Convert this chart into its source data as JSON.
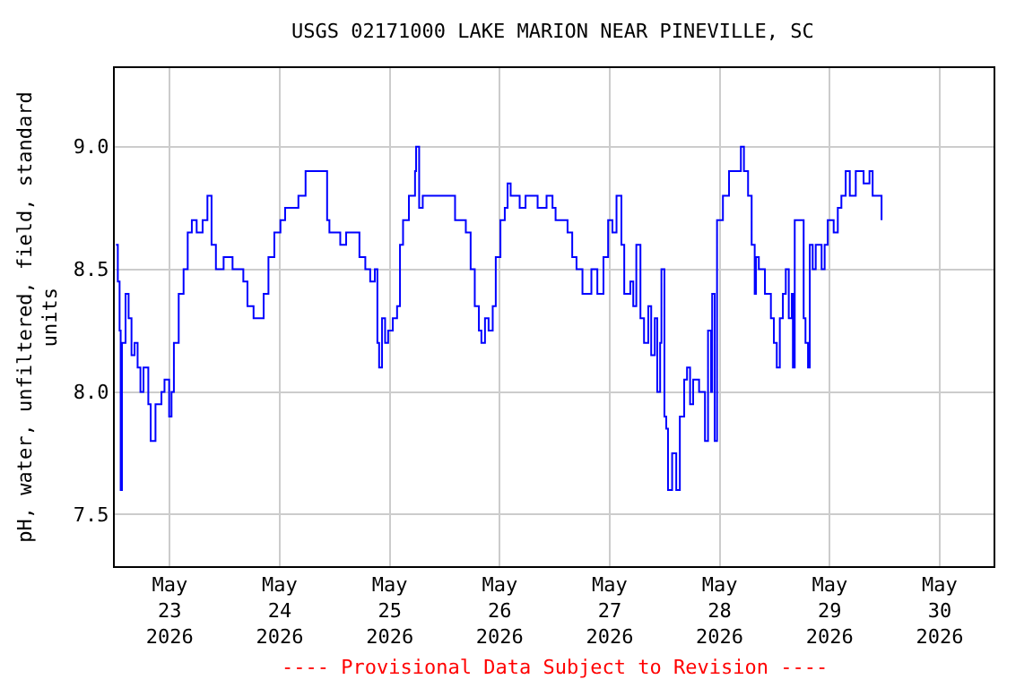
{
  "chart_data": {
    "type": "step",
    "title": "USGS 02171000 LAKE MARION NEAR PINEVILLE, SC",
    "ylabel": "pH, water, unfiltered, field, standard units",
    "annotations": [
      "---- Provisional Data Subject to Revision ----"
    ],
    "x": [
      "2026-05-22T12:16",
      "2026-05-22T12:40",
      "2026-05-22T13:03",
      "2026-05-22T13:17",
      "2026-05-22T13:34",
      "2026-05-22T14:21",
      "2026-05-22T15:01",
      "2026-05-22T15:39",
      "2026-05-22T16:19",
      "2026-05-22T16:59",
      "2026-05-22T17:36",
      "2026-05-22T18:16",
      "2026-05-22T19:19",
      "2026-05-22T19:50",
      "2026-05-22T20:53",
      "2026-05-22T22:11",
      "2026-05-22T22:51",
      "2026-05-22T23:52",
      "2026-05-23T00:23",
      "2026-05-23T00:54",
      "2026-05-23T01:57",
      "2026-05-23T03:01",
      "2026-05-23T03:55",
      "2026-05-23T04:49",
      "2026-05-23T05:52",
      "2026-05-23T07:10",
      "2026-05-23T08:13",
      "2026-05-23T09:07",
      "2026-05-23T10:04",
      "2026-05-23T11:45",
      "2026-05-23T13:42",
      "2026-05-23T16:03",
      "2026-05-23T16:57",
      "2026-05-23T18:17",
      "2026-05-23T19:58",
      "2026-05-23T20:29",
      "2026-05-23T21:32",
      "2026-05-23T22:49",
      "2026-05-24T00:09",
      "2026-05-24T01:10",
      "2026-05-24T02:44",
      "2026-05-24T04:04",
      "2026-05-24T05:38",
      "2026-05-24T09:17",
      "2026-05-24T10:20",
      "2026-05-24T10:50",
      "2026-05-24T11:54",
      "2026-05-24T12:32",
      "2026-05-24T13:12",
      "2026-05-24T14:29",
      "2026-05-24T16:27",
      "2026-05-24T17:23",
      "2026-05-24T18:40",
      "2026-05-24T19:44",
      "2026-05-24T20:45",
      "2026-05-24T21:18",
      "2026-05-24T21:41",
      "2026-05-24T22:19",
      "2026-05-24T22:59",
      "2026-05-24T23:39",
      "2026-05-25T00:40",
      "2026-05-25T01:36",
      "2026-05-25T02:14",
      "2026-05-25T02:54",
      "2026-05-25T04:11",
      "2026-05-25T05:31",
      "2026-05-25T05:45",
      "2026-05-25T06:25",
      "2026-05-25T07:12",
      "2026-05-25T13:21",
      "2026-05-25T14:15",
      "2026-05-25T16:36",
      "2026-05-25T17:39",
      "2026-05-25T18:33",
      "2026-05-25T19:27",
      "2026-05-25T20:00",
      "2026-05-25T20:47",
      "2026-05-25T21:34",
      "2026-05-25T22:28",
      "2026-05-25T23:08",
      "2026-05-26T00:09",
      "2026-05-26T01:06",
      "2026-05-26T01:43",
      "2026-05-26T02:23",
      "2026-05-26T04:21",
      "2026-05-26T05:38",
      "2026-05-26T08:16",
      "2026-05-26T10:13",
      "2026-05-26T11:31",
      "2026-05-26T12:11",
      "2026-05-26T14:48",
      "2026-05-26T15:49",
      "2026-05-26T16:45",
      "2026-05-26T18:03",
      "2026-05-26T20:00",
      "2026-05-26T21:18",
      "2026-05-26T22:38",
      "2026-05-26T23:39",
      "2026-05-27T00:35",
      "2026-05-27T01:29",
      "2026-05-27T02:33",
      "2026-05-27T03:10",
      "2026-05-27T04:30",
      "2026-05-27T05:08",
      "2026-05-27T05:48",
      "2026-05-27T06:42",
      "2026-05-27T07:29",
      "2026-05-27T08:25",
      "2026-05-27T09:03",
      "2026-05-27T09:50",
      "2026-05-27T10:22",
      "2026-05-27T11:00",
      "2026-05-27T11:17",
      "2026-05-27T11:56",
      "2026-05-27T12:20",
      "2026-05-27T12:43",
      "2026-05-27T13:37",
      "2026-05-27T14:31",
      "2026-05-27T15:18",
      "2026-05-27T16:15",
      "2026-05-27T16:52",
      "2026-05-27T17:32",
      "2026-05-27T18:12",
      "2026-05-27T19:30",
      "2026-05-27T20:33",
      "2026-05-27T20:47",
      "2026-05-27T21:27",
      "2026-05-27T22:07",
      "2026-05-27T22:21",
      "2026-05-27T22:54",
      "2026-05-27T23:25",
      "2026-05-28T00:42",
      "2026-05-28T02:02",
      "2026-05-28T03:59",
      "2026-05-28T04:37",
      "2026-05-28T05:17",
      "2026-05-28T06:11",
      "2026-05-28T06:58",
      "2026-05-28T07:38",
      "2026-05-28T07:55",
      "2026-05-28T08:32",
      "2026-05-28T09:12",
      "2026-05-28T09:52",
      "2026-05-28T11:10",
      "2026-05-28T11:49",
      "2026-05-28T12:27",
      "2026-05-28T13:07",
      "2026-05-28T13:47",
      "2026-05-28T14:25",
      "2026-05-28T15:04",
      "2026-05-28T15:44",
      "2026-05-28T15:58",
      "2026-05-28T16:22",
      "2026-05-28T17:42",
      "2026-05-28T18:19",
      "2026-05-28T18:43",
      "2026-05-28T19:16",
      "2026-05-28T19:39",
      "2026-05-28T20:17",
      "2026-05-28T20:57",
      "2026-05-28T22:14",
      "2026-05-28T22:54",
      "2026-05-28T23:34",
      "2026-05-29T00:52",
      "2026-05-29T01:46",
      "2026-05-29T02:33",
      "2026-05-29T03:29",
      "2026-05-29T04:23",
      "2026-05-29T05:41",
      "2026-05-29T07:24",
      "2026-05-29T08:41",
      "2026-05-29T09:22",
      "2026-05-29T10:39",
      "2026-05-29T11:19"
    ],
    "series": [
      {
        "color": "#0000ff",
        "values": [
          8.6,
          8.45,
          8.25,
          7.6,
          8.2,
          8.4,
          8.3,
          8.15,
          8.2,
          8.1,
          8.0,
          8.1,
          7.95,
          7.8,
          7.95,
          8.0,
          8.05,
          7.9,
          8.0,
          8.2,
          8.4,
          8.5,
          8.65,
          8.7,
          8.65,
          8.7,
          8.8,
          8.6,
          8.5,
          8.55,
          8.5,
          8.45,
          8.35,
          8.3,
          8.3,
          8.4,
          8.55,
          8.65,
          8.7,
          8.75,
          8.75,
          8.8,
          8.9,
          8.9,
          8.7,
          8.65,
          8.65,
          8.65,
          8.6,
          8.65,
          8.65,
          8.55,
          8.5,
          8.45,
          8.5,
          8.2,
          8.1,
          8.3,
          8.2,
          8.25,
          8.3,
          8.35,
          8.6,
          8.7,
          8.8,
          8.9,
          9.0,
          8.75,
          8.8,
          8.8,
          8.7,
          8.65,
          8.5,
          8.35,
          8.25,
          8.2,
          8.3,
          8.25,
          8.35,
          8.55,
          8.7,
          8.75,
          8.85,
          8.8,
          8.75,
          8.8,
          8.75,
          8.8,
          8.75,
          8.7,
          8.65,
          8.55,
          8.5,
          8.4,
          8.5,
          8.4,
          8.55,
          8.7,
          8.65,
          8.8,
          8.6,
          8.4,
          8.45,
          8.35,
          8.6,
          8.3,
          8.2,
          8.35,
          8.15,
          8.3,
          8.0,
          8.2,
          8.5,
          7.9,
          7.85,
          7.6,
          7.75,
          7.6,
          7.9,
          8.05,
          8.1,
          7.95,
          8.05,
          8.0,
          8.0,
          7.8,
          8.25,
          8.0,
          8.4,
          7.8,
          8.7,
          8.8,
          8.9,
          8.9,
          9.0,
          8.9,
          8.8,
          8.6,
          8.4,
          8.55,
          8.5,
          8.5,
          8.4,
          8.3,
          8.2,
          8.1,
          8.3,
          8.4,
          8.5,
          8.3,
          8.4,
          8.1,
          8.7,
          8.7,
          8.3,
          8.2,
          8.1,
          8.6,
          8.5,
          8.6,
          8.5,
          8.6,
          8.7,
          8.65,
          8.75,
          8.8,
          8.9,
          8.8,
          8.9,
          8.85,
          8.9,
          8.8,
          8.8,
          8.7
        ]
      }
    ],
    "xlim": [
      "2026-05-22T12:00",
      "2026-05-30T11:45"
    ],
    "xticks": [
      {
        "value": "2026-05-23",
        "label": "May\n23\n2026"
      },
      {
        "value": "2026-05-24",
        "label": "May\n24\n2026"
      },
      {
        "value": "2026-05-25",
        "label": "May\n25\n2026"
      },
      {
        "value": "2026-05-26",
        "label": "May\n26\n2026"
      },
      {
        "value": "2026-05-27",
        "label": "May\n27\n2026"
      },
      {
        "value": "2026-05-28",
        "label": "May\n28\n2026"
      },
      {
        "value": "2026-05-29",
        "label": "May\n29\n2026"
      },
      {
        "value": "2026-05-30",
        "label": "May\n30\n2026"
      }
    ],
    "ylim": [
      7.29,
      9.32
    ],
    "yticks": [
      {
        "value": 7.5,
        "label": "7.5"
      },
      {
        "value": 8.0,
        "label": "8.0"
      },
      {
        "value": 8.5,
        "label": "8.5"
      },
      {
        "value": 9.0,
        "label": "9.0"
      }
    ],
    "grid": true,
    "marker": "none",
    "line_style": "solid"
  }
}
